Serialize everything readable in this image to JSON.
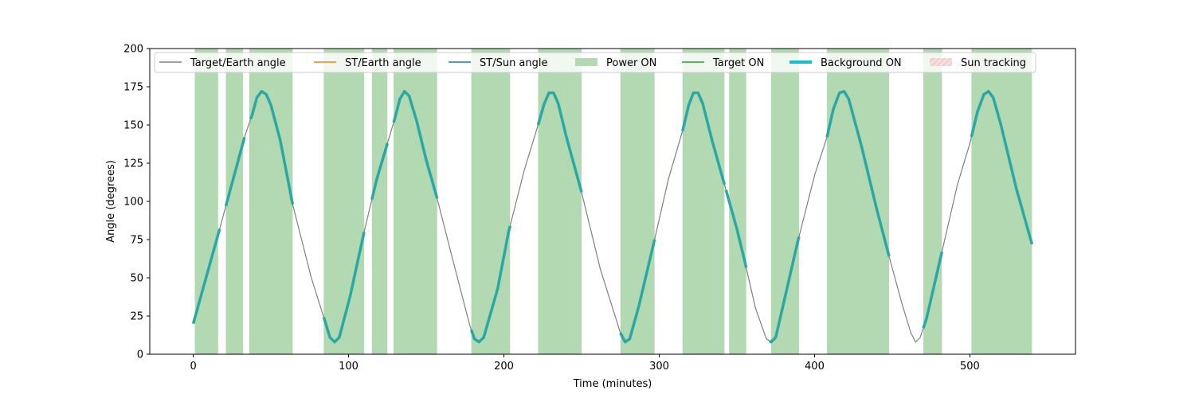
{
  "chart_data": {
    "type": "line",
    "title": "",
    "xlabel": "Time (minutes)",
    "ylabel": "Angle (degrees)",
    "xlim": [
      -28,
      568
    ],
    "ylim": [
      0,
      200
    ],
    "xticks": [
      0,
      100,
      200,
      300,
      400,
      500
    ],
    "yticks": [
      0,
      25,
      50,
      75,
      100,
      125,
      150,
      175,
      200
    ],
    "legend_position": "top",
    "legend": [
      {
        "label": "Target/Earth angle",
        "kind": "line",
        "color": "#808080"
      },
      {
        "label": "ST/Earth angle",
        "kind": "line",
        "color": "#ff7f0e"
      },
      {
        "label": "ST/Sun angle",
        "kind": "line",
        "color": "#1f77b4"
      },
      {
        "label": "Power ON",
        "kind": "patch",
        "color": "#b3d9b3"
      },
      {
        "label": "Target ON",
        "kind": "line",
        "color": "#2ca02c"
      },
      {
        "label": "Background ON",
        "kind": "thick-line",
        "color": "#17becf"
      },
      {
        "label": "Sun tracking",
        "kind": "hatch-patch",
        "color": "#f4cccc"
      }
    ],
    "target_earth_angle": {
      "color": "#808080",
      "points": [
        [
          0,
          20
        ],
        [
          17,
          82
        ],
        [
          33,
          142
        ],
        [
          38,
          157
        ],
        [
          41,
          168
        ],
        [
          44,
          172
        ],
        [
          47,
          170
        ],
        [
          50,
          163
        ],
        [
          56,
          140
        ],
        [
          64,
          98
        ],
        [
          76,
          50
        ],
        [
          85,
          21
        ],
        [
          88,
          11
        ],
        [
          91,
          8
        ],
        [
          94,
          11
        ],
        [
          101,
          38
        ],
        [
          110,
          80
        ],
        [
          118,
          114
        ],
        [
          125,
          138
        ],
        [
          130,
          155
        ],
        [
          133,
          167
        ],
        [
          136,
          172
        ],
        [
          139,
          169
        ],
        [
          144,
          152
        ],
        [
          150,
          127
        ],
        [
          157,
          102
        ],
        [
          166,
          66
        ],
        [
          178,
          19
        ],
        [
          181,
          10
        ],
        [
          184,
          8
        ],
        [
          187,
          11
        ],
        [
          196,
          43
        ],
        [
          203,
          80
        ],
        [
          213,
          120
        ],
        [
          222,
          150
        ],
        [
          226,
          164
        ],
        [
          229,
          171
        ],
        [
          232,
          171
        ],
        [
          235,
          164
        ],
        [
          240,
          143
        ],
        [
          250,
          106
        ],
        [
          262,
          56
        ],
        [
          275,
          14
        ],
        [
          278,
          8
        ],
        [
          281,
          10
        ],
        [
          287,
          32
        ],
        [
          297,
          75
        ],
        [
          306,
          115
        ],
        [
          315,
          146
        ],
        [
          319,
          163
        ],
        [
          322,
          171
        ],
        [
          325,
          171
        ],
        [
          328,
          164
        ],
        [
          334,
          140
        ],
        [
          342,
          111
        ],
        [
          350,
          82
        ],
        [
          355,
          61
        ],
        [
          362,
          30
        ],
        [
          369,
          10
        ],
        [
          372,
          8
        ],
        [
          375,
          11
        ],
        [
          380,
          33
        ],
        [
          389,
          73
        ],
        [
          400,
          117
        ],
        [
          408,
          142
        ],
        [
          412,
          160
        ],
        [
          416,
          171
        ],
        [
          419,
          172
        ],
        [
          422,
          167
        ],
        [
          430,
          137
        ],
        [
          440,
          95
        ],
        [
          448,
          64
        ],
        [
          456,
          34
        ],
        [
          462,
          14
        ],
        [
          465,
          8
        ],
        [
          468,
          11
        ],
        [
          472,
          23
        ],
        [
          482,
          67
        ],
        [
          492,
          111
        ],
        [
          500,
          138
        ],
        [
          505,
          159
        ],
        [
          509,
          170
        ],
        [
          512,
          172
        ],
        [
          515,
          168
        ],
        [
          520,
          150
        ],
        [
          530,
          108
        ],
        [
          540,
          72
        ]
      ]
    },
    "power_on_intervals": [
      [
        1,
        16
      ],
      [
        21,
        32
      ],
      [
        36,
        64
      ],
      [
        84,
        110
      ],
      [
        115,
        125
      ],
      [
        129,
        157
      ],
      [
        179,
        204
      ],
      [
        222,
        250
      ],
      [
        275,
        297
      ],
      [
        315,
        342
      ],
      [
        345,
        356
      ],
      [
        372,
        390
      ],
      [
        408,
        448
      ],
      [
        470,
        482
      ],
      [
        501,
        540
      ]
    ],
    "background_on_intervals": [
      [
        0,
        17
      ],
      [
        21,
        33
      ],
      [
        37,
        64
      ],
      [
        84,
        110
      ],
      [
        115,
        125
      ],
      [
        129,
        157
      ],
      [
        179,
        204
      ],
      [
        222,
        250
      ],
      [
        275,
        297
      ],
      [
        315,
        342
      ],
      [
        343,
        356
      ],
      [
        371,
        390
      ],
      [
        408,
        448
      ],
      [
        470,
        482
      ],
      [
        501,
        540
      ]
    ]
  }
}
